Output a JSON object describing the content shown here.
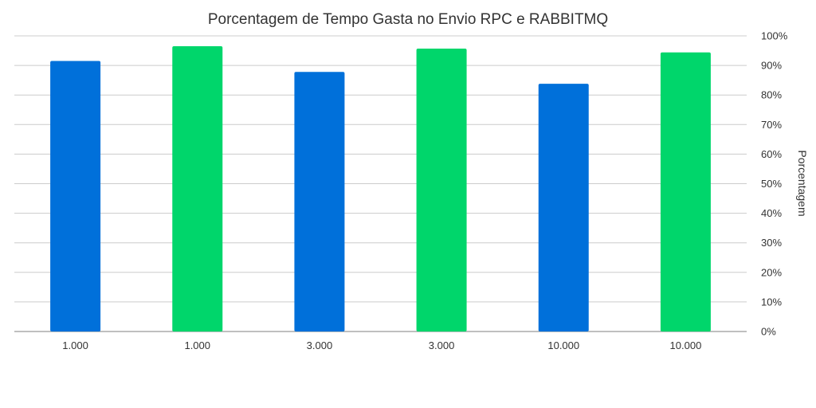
{
  "chart_data": {
    "type": "bar",
    "title": "Porcentagem de Tempo Gasta no Envio RPC e RABBITMQ",
    "xlabel": "",
    "ylabel": "Porcentagem",
    "ylim": [
      0,
      100
    ],
    "y_axis_side": "right",
    "y_ticks": [
      "0%",
      "10%",
      "20%",
      "30%",
      "40%",
      "50%",
      "60%",
      "70%",
      "80%",
      "90%",
      "100%"
    ],
    "grid": true,
    "legend": "none",
    "categories": [
      "1.000",
      "1.000",
      "3.000",
      "3.000",
      "10.000",
      "10.000"
    ],
    "values": [
      91.5,
      96.5,
      87.8,
      95.7,
      83.8,
      94.4
    ],
    "bar_colors": [
      "#0070da",
      "#00d66b",
      "#0070da",
      "#00d66b",
      "#0070da",
      "#00d66b"
    ]
  }
}
